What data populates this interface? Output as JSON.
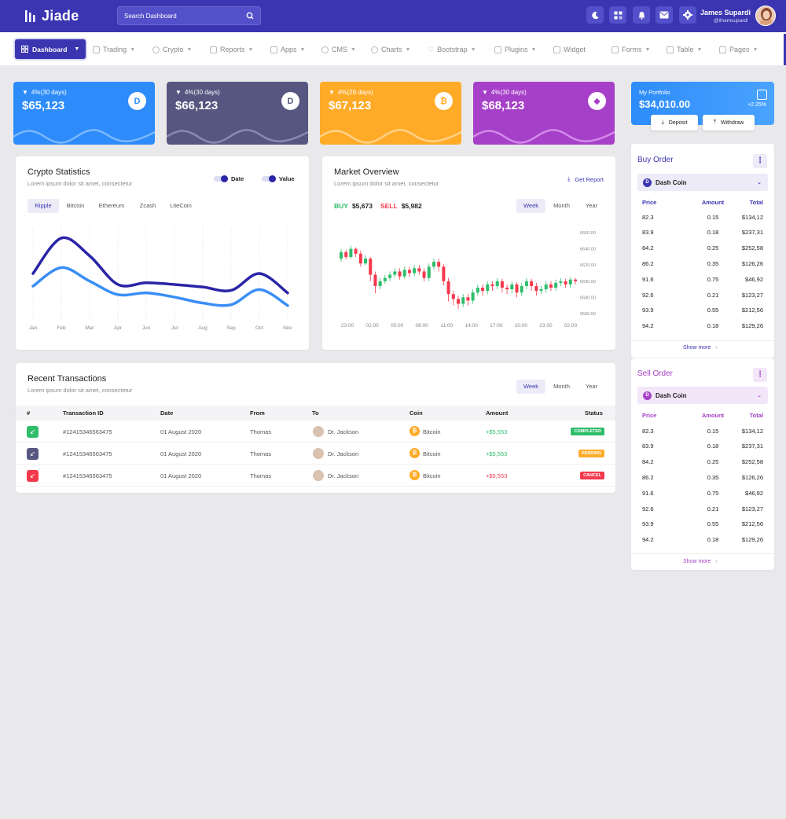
{
  "header": {
    "logo_text": "Jiade",
    "search_placeholder": "Search Dashboard",
    "user_name": "James Supardi",
    "user_handle": "@ilhamsupardi"
  },
  "nav": {
    "items": [
      {
        "label": "Dashboard",
        "icon": "grid-icon"
      },
      {
        "label": "Trading",
        "icon": "trend-icon"
      },
      {
        "label": "Crypto",
        "icon": "coin-icon"
      },
      {
        "label": "Reports",
        "icon": "report-icon"
      },
      {
        "label": "Apps",
        "icon": "apps-icon"
      },
      {
        "label": "CMS",
        "icon": "gear-icon"
      },
      {
        "label": "Charts",
        "icon": "pie-icon"
      },
      {
        "label": "Bootstrap",
        "icon": "heart-icon"
      },
      {
        "label": "Plugins",
        "icon": "plugin-icon"
      },
      {
        "label": "Widget",
        "icon": "widget-icon"
      },
      {
        "label": "Forms",
        "icon": "form-icon"
      },
      {
        "label": "Table",
        "icon": "table-icon"
      },
      {
        "label": "Pages",
        "icon": "page-icon"
      }
    ]
  },
  "stats": [
    {
      "change": "4%(30 days)",
      "value": "$65,123",
      "icon": "dash-coin-icon",
      "color": "#2d8cf9"
    },
    {
      "change": "4%(30 days)",
      "value": "$66,123",
      "icon": "dash-coin-icon",
      "color": "#565680"
    },
    {
      "change": "4%(29 days)",
      "value": "$67,123",
      "icon": "bitcoin-icon",
      "color": "#ffab28"
    },
    {
      "change": "4%(30 days)",
      "value": "$68,123",
      "icon": "ethereum-icon",
      "color": "#a640c8"
    }
  ],
  "portfolio": {
    "title": "My Portfolio",
    "value": "$34,010.00",
    "change": "+2.25%",
    "deposit": "Deposit",
    "withdraw": "Withdraw"
  },
  "crypto_stats": {
    "title": "Crypto Statistics",
    "subtitle": "Lorem ipsum dolor sit amet, consectetur",
    "legend": [
      "Date",
      "Value"
    ],
    "tabs": [
      "Ripple",
      "Bitcoin",
      "Ethereum",
      "Zcash",
      "LiteCoin"
    ]
  },
  "market": {
    "title": "Market Overview",
    "subtitle": "Lorem ipsum dolor sit amet, consectetur",
    "get_report": "Get Report",
    "buy_label": "BUY",
    "buy_value": "$5,673",
    "sell_label": "SELL",
    "sell_value": "$5,982",
    "tabs": [
      "Week",
      "Month",
      "Year"
    ]
  },
  "transactions": {
    "title": "Recent Transactions",
    "subtitle": "Lorem ipsum dolor sit amet, consectetur",
    "tabs": [
      "Week",
      "Month",
      "Year"
    ],
    "columns": [
      "#",
      "Transaction ID",
      "Date",
      "From",
      "To",
      "Coin",
      "Amount",
      "Status"
    ],
    "rows": [
      {
        "id": "#12415346563475",
        "date": "01 August 2020",
        "from": "Thomas",
        "to": "Dr. Jackson",
        "coin": "Bitcoin",
        "amount": "+$5,553",
        "status": "COMPLETED",
        "status_color": "#2ebd6b",
        "amount_color": "#2ebd6b",
        "type_color": "#2ebd6b"
      },
      {
        "id": "#12415346563475",
        "date": "01 August 2020",
        "from": "Thomas",
        "to": "Dr. Jackson",
        "coin": "Bitcoin",
        "amount": "+$5,553",
        "status": "PENDING",
        "status_color": "#ffab28",
        "amount_color": "#2ebd6b",
        "type_color": "#565680"
      },
      {
        "id": "#12415346563475",
        "date": "01 August 2020",
        "from": "Thomas",
        "to": "Dr. Jackson",
        "coin": "Bitcoin",
        "amount": "+$5,553",
        "status": "CANCEL",
        "status_color": "#f5394d",
        "amount_color": "#f5394d",
        "type_color": "#f5394d"
      }
    ]
  },
  "buy_order": {
    "title": "Buy Order",
    "coin": "Dash Coin",
    "columns": [
      "Price",
      "Amount",
      "Total"
    ],
    "rows": [
      [
        "82.3",
        "0.15",
        "$134,12"
      ],
      [
        "83.9",
        "0.18",
        "$237,31"
      ],
      [
        "84.2",
        "0.25",
        "$252,58"
      ],
      [
        "86.2",
        "0.35",
        "$126,26"
      ],
      [
        "91.6",
        "0.75",
        "$46,92"
      ],
      [
        "92.6",
        "0.21",
        "$123,27"
      ],
      [
        "93.9",
        "0.55",
        "$212,56"
      ],
      [
        "94.2",
        "0.18",
        "$129,26"
      ]
    ],
    "show_more": "Show more"
  },
  "sell_order": {
    "title": "Sell Order",
    "coin": "Dash Coin",
    "columns": [
      "Price",
      "Amount",
      "Total"
    ],
    "rows": [
      [
        "82.3",
        "0.15",
        "$134,12"
      ],
      [
        "83.9",
        "0.18",
        "$237,31"
      ],
      [
        "84.2",
        "0.25",
        "$252,58"
      ],
      [
        "86.2",
        "0.35",
        "$126,26"
      ],
      [
        "91.6",
        "0.75",
        "$46,92"
      ],
      [
        "92.6",
        "0.21",
        "$123,27"
      ],
      [
        "93.9",
        "0.55",
        "$212,56"
      ],
      [
        "94.2",
        "0.18",
        "$129,26"
      ]
    ],
    "show_more": "Show more"
  },
  "chart_data": [
    {
      "type": "line",
      "categories": [
        "Jan",
        "Feb",
        "Mar",
        "Apr",
        "Jun",
        "Jul",
        "Aug",
        "Sep",
        "Oct",
        "Nov"
      ],
      "series": [
        {
          "name": "Date",
          "values": [
            55,
            97,
            76,
            42,
            44,
            42,
            39,
            35,
            55,
            32
          ],
          "color": "#2a24a6"
        },
        {
          "name": "Value",
          "values": [
            40,
            62,
            46,
            30,
            32,
            27,
            20,
            18,
            36,
            17
          ],
          "color": "#3a8ef6"
        }
      ],
      "ylim": [
        0,
        110
      ],
      "grid": true
    },
    {
      "type": "candlestick",
      "x_labels": [
        "23:00",
        "02:00",
        "05:00",
        "08:00",
        "11:00",
        "14:00",
        "17:00",
        "20:00",
        "23:00",
        "02:00"
      ],
      "y_ticks": [
        "6660.00",
        "6640.00",
        "6620.00",
        "6600.00",
        "6580.00",
        "6560.00"
      ],
      "ylim": [
        6555,
        6665
      ],
      "up_color": "#2ebd6b",
      "down_color": "#f5394d",
      "candles": [
        [
          6628,
          6636,
          6624,
          6640
        ],
        [
          6636,
          6630,
          6627,
          6639
        ],
        [
          6630,
          6640,
          6628,
          6644
        ],
        [
          6640,
          6634,
          6630,
          6642
        ],
        [
          6634,
          6622,
          6618,
          6638
        ],
        [
          6622,
          6628,
          6620,
          6632
        ],
        [
          6628,
          6608,
          6600,
          6630
        ],
        [
          6608,
          6594,
          6585,
          6612
        ],
        [
          6594,
          6600,
          6590,
          6604
        ],
        [
          6600,
          6604,
          6597,
          6608
        ],
        [
          6604,
          6608,
          6600,
          6612
        ],
        [
          6608,
          6612,
          6604,
          6616
        ],
        [
          6612,
          6606,
          6602,
          6616
        ],
        [
          6606,
          6614,
          6603,
          6618
        ],
        [
          6614,
          6610,
          6605,
          6618
        ],
        [
          6610,
          6616,
          6606,
          6620
        ],
        [
          6616,
          6612,
          6608,
          6620
        ],
        [
          6612,
          6604,
          6600,
          6616
        ],
        [
          6604,
          6618,
          6600,
          6622
        ],
        [
          6618,
          6624,
          6614,
          6628
        ],
        [
          6624,
          6618,
          6612,
          6628
        ],
        [
          6618,
          6600,
          6595,
          6621
        ],
        [
          6600,
          6584,
          6575,
          6604
        ],
        [
          6584,
          6578,
          6570,
          6588
        ],
        [
          6578,
          6572,
          6566,
          6582
        ],
        [
          6572,
          6580,
          6568,
          6584
        ],
        [
          6580,
          6576,
          6570,
          6584
        ],
        [
          6576,
          6586,
          6572,
          6590
        ],
        [
          6586,
          6592,
          6582,
          6596
        ],
        [
          6592,
          6588,
          6582,
          6596
        ],
        [
          6588,
          6596,
          6584,
          6600
        ],
        [
          6596,
          6594,
          6588,
          6600
        ],
        [
          6594,
          6600,
          6590,
          6604
        ],
        [
          6600,
          6592,
          6586,
          6603
        ],
        [
          6592,
          6590,
          6584,
          6596
        ],
        [
          6590,
          6596,
          6585,
          6600
        ],
        [
          6596,
          6586,
          6580,
          6599
        ],
        [
          6586,
          6594,
          6582,
          6598
        ],
        [
          6594,
          6600,
          6590,
          6604
        ],
        [
          6600,
          6594,
          6588,
          6603
        ],
        [
          6594,
          6588,
          6582,
          6598
        ],
        [
          6588,
          6590,
          6584,
          6594
        ],
        [
          6590,
          6596,
          6586,
          6600
        ],
        [
          6596,
          6592,
          6588,
          6600
        ],
        [
          6592,
          6598,
          6588,
          6602
        ],
        [
          6598,
          6600,
          6594,
          6604
        ],
        [
          6600,
          6596,
          6592,
          6603
        ],
        [
          6596,
          6602,
          6592,
          6605
        ],
        [
          6602,
          6600,
          6596,
          6604
        ]
      ]
    }
  ]
}
